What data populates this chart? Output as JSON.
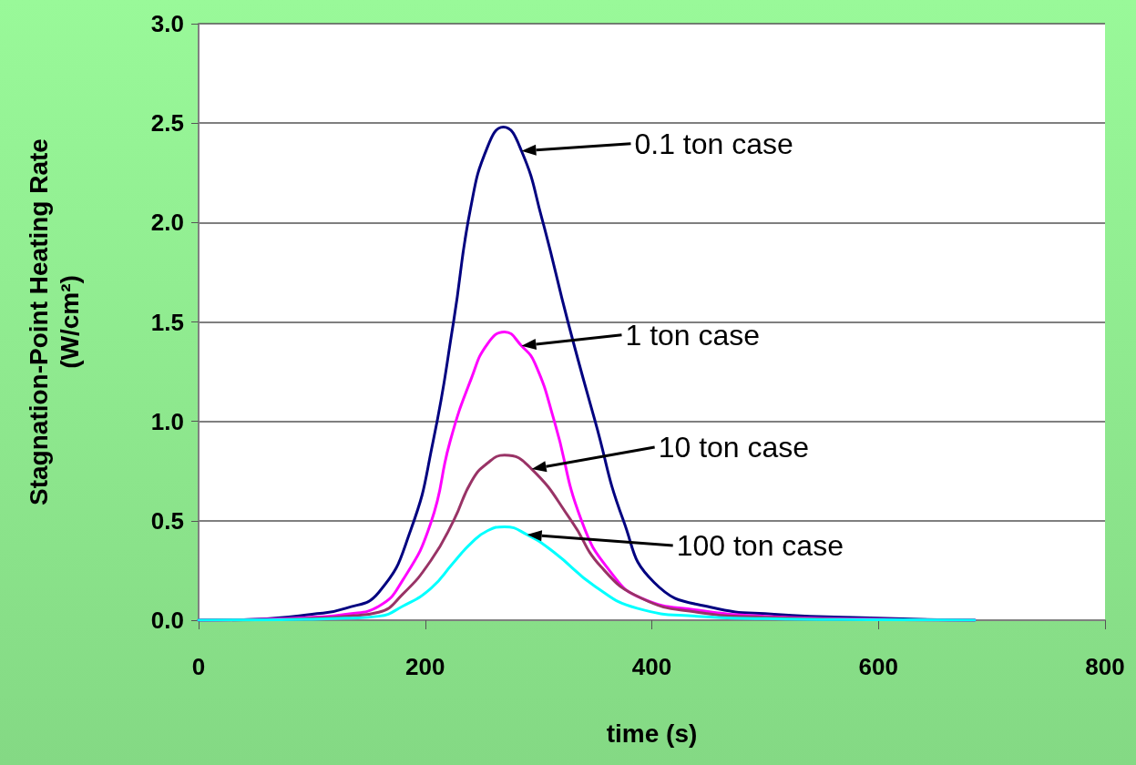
{
  "chart_data": {
    "type": "line",
    "xlabel": "time (s)",
    "ylabel": "Stagnation-Point Heating Rate\n(W/cm²)",
    "xlim": [
      0,
      800
    ],
    "xticks": [
      0,
      200,
      400,
      600,
      800
    ],
    "ylim": [
      0,
      3
    ],
    "yticks": [
      {
        "value": 0,
        "label": "0.0"
      },
      {
        "value": 0.5,
        "label": "0.5"
      },
      {
        "value": 1,
        "label": "1.0"
      },
      {
        "value": 1.5,
        "label": "1.5"
      },
      {
        "value": 2,
        "label": "2.0"
      },
      {
        "value": 2.5,
        "label": "2.5"
      },
      {
        "value": 3,
        "label": "3.0"
      }
    ],
    "grid": "y",
    "marker": "none",
    "line_style": "solid",
    "series": [
      {
        "color": "#000080",
        "x": [
          0,
          50,
          100,
          130,
          159,
          187,
          207,
          225,
          240,
          255,
          269,
          285,
          303,
          326,
          350,
          375,
          402,
          452,
          508,
          600,
          685
        ],
        "values": [
          0,
          0.005,
          0.03,
          0.06,
          0.14,
          0.45,
          0.9,
          1.5,
          2.07,
          2.38,
          2.48,
          2.36,
          2.02,
          1.5,
          1.0,
          0.5,
          0.19,
          0.065,
          0.03,
          0.01,
          0
        ]
      },
      {
        "color": "#ff00ff",
        "x": [
          0,
          50,
          100,
          130,
          159,
          180,
          205,
          222,
          241,
          255,
          270,
          285,
          297,
          314,
          338,
          364,
          391,
          441,
          500,
          600,
          685
        ],
        "values": [
          0,
          0.003,
          0.015,
          0.03,
          0.07,
          0.2,
          0.49,
          0.9,
          1.22,
          1.39,
          1.45,
          1.38,
          1.29,
          1.0,
          0.5,
          0.24,
          0.11,
          0.05,
          0.02,
          0.005,
          0
        ]
      },
      {
        "color": "#993366",
        "x": [
          0,
          50,
          100,
          130,
          159,
          180,
          205,
          225,
          241,
          255,
          270,
          294,
          329,
          355,
          391,
          440,
          500,
          600,
          685
        ],
        "values": [
          0,
          0.002,
          0.01,
          0.02,
          0.04,
          0.13,
          0.3,
          0.5,
          0.7,
          0.79,
          0.83,
          0.76,
          0.5,
          0.27,
          0.11,
          0.04,
          0.015,
          0.003,
          0
        ]
      },
      {
        "color": "#00ffff",
        "x": [
          0,
          50,
          100,
          130,
          159,
          180,
          205,
          225,
          241,
          255,
          270,
          290,
          314,
          350,
          387,
          440,
          500,
          600,
          685
        ],
        "values": [
          0,
          0.001,
          0.005,
          0.01,
          0.02,
          0.07,
          0.16,
          0.29,
          0.39,
          0.45,
          0.47,
          0.43,
          0.34,
          0.17,
          0.06,
          0.02,
          0.008,
          0.002,
          0
        ]
      }
    ],
    "annotations": [
      "0.1 ton case",
      "1 ton case",
      "10 ton case",
      "100 ton case"
    ]
  }
}
